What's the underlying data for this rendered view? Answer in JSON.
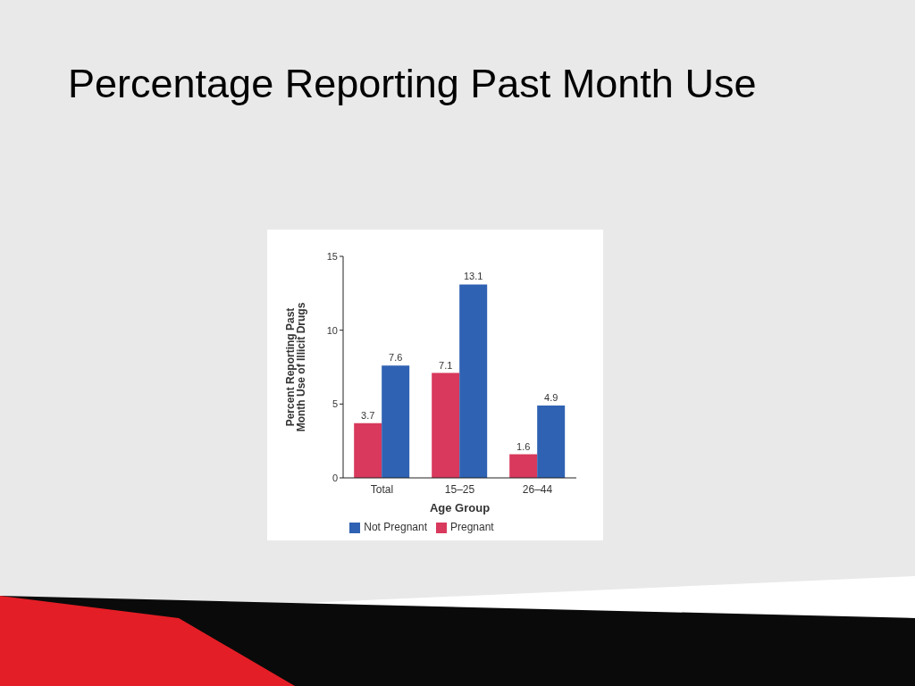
{
  "chart_data": {
    "type": "bar",
    "title": "Percentage Reporting Past Month Use",
    "xlabel": "Age Group",
    "ylabel": "Percent Reporting Past Month Use of Illicit Drugs",
    "categories": [
      "Total",
      "15–25",
      "26–44"
    ],
    "series": [
      {
        "name": "Pregnant",
        "color": "#d8395c",
        "values": [
          3.7,
          7.1,
          1.6
        ]
      },
      {
        "name": "Not Pregnant",
        "color": "#2f62b3",
        "values": [
          7.6,
          13.1,
          4.9
        ]
      }
    ],
    "ylim": [
      0,
      15
    ],
    "yticks": [
      0,
      5,
      10,
      15
    ],
    "grid": false,
    "legend": "bottom",
    "data_labels": true
  }
}
